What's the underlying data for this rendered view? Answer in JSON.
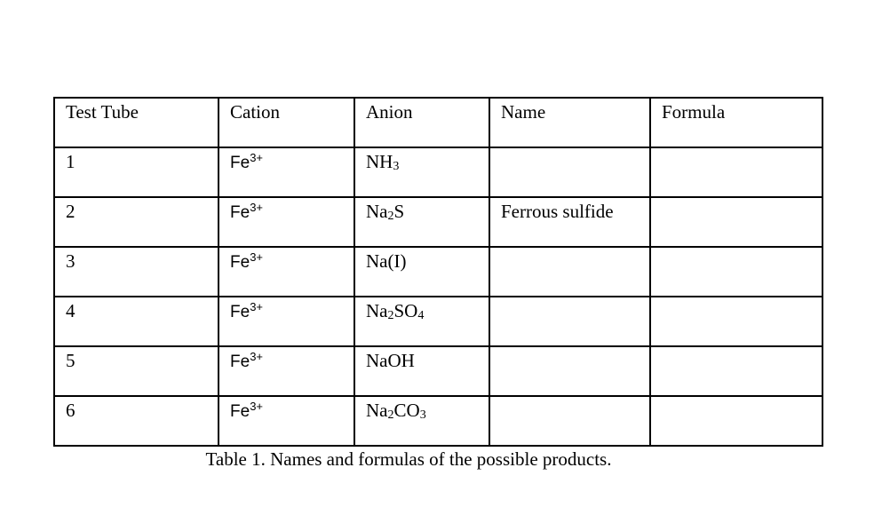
{
  "table": {
    "headers": [
      "Test Tube",
      "Cation",
      "Anion",
      "Name",
      "Formula"
    ],
    "rows": [
      {
        "tube": "1",
        "cation": "Fe",
        "cation_charge": "3+",
        "anion": [
          [
            "NH",
            ""
          ],
          [
            "",
            "3"
          ]
        ],
        "name": "",
        "formula": ""
      },
      {
        "tube": "2",
        "cation": "Fe",
        "cation_charge": "3+",
        "anion": [
          [
            "Na",
            ""
          ],
          [
            "",
            "2"
          ],
          [
            "S",
            ""
          ]
        ],
        "name": "Ferrous sulfide",
        "formula": ""
      },
      {
        "tube": "3",
        "cation": "Fe",
        "cation_charge": "3+",
        "anion": [
          [
            "Na(I)",
            ""
          ]
        ],
        "name": "",
        "formula": ""
      },
      {
        "tube": "4",
        "cation": "Fe",
        "cation_charge": "3+",
        "anion": [
          [
            "Na",
            ""
          ],
          [
            "",
            "2"
          ],
          [
            "SO",
            ""
          ],
          [
            "",
            "4"
          ]
        ],
        "name": "",
        "formula": ""
      },
      {
        "tube": "5",
        "cation": "Fe",
        "cation_charge": "3+",
        "anion": [
          [
            "NaOH",
            ""
          ]
        ],
        "name": "",
        "formula": ""
      },
      {
        "tube": "6",
        "cation": "Fe",
        "cation_charge": "3+",
        "anion": [
          [
            "Na",
            ""
          ],
          [
            "",
            "2"
          ],
          [
            "CO",
            ""
          ],
          [
            "",
            "3"
          ]
        ],
        "name": "",
        "formula": ""
      }
    ]
  },
  "caption": "Table 1. Names and formulas of the possible products."
}
